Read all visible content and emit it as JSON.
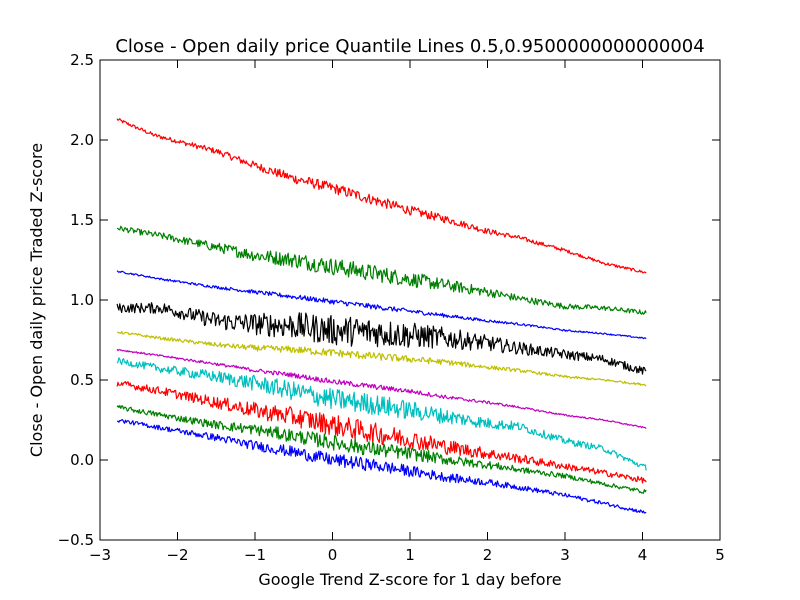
{
  "chart_data": {
    "type": "line",
    "title": "Close - Open daily price Quantile Lines 0.5,0.9500000000000004",
    "xlabel": "Google Trend Z-score for 1 day before",
    "ylabel": "Close - Open daily price Traded Z-score",
    "xlim": [
      -3,
      5
    ],
    "ylim": [
      -0.5,
      2.5
    ],
    "x_ticks": [
      -3,
      -2,
      -1,
      0,
      1,
      2,
      3,
      4,
      5
    ],
    "x_tick_labels": [
      "−3",
      "−2",
      "−1",
      "0",
      "1",
      "2",
      "3",
      "4",
      "5"
    ],
    "y_ticks": [
      -0.5,
      0.0,
      0.5,
      1.0,
      1.5,
      2.0,
      2.5
    ],
    "y_tick_labels": [
      "−0.5",
      "0.0",
      "0.5",
      "1.0",
      "1.5",
      "2.0",
      "2.5"
    ],
    "grid": false,
    "legend": "none",
    "series": [
      {
        "color": "#ff0000",
        "x": [
          -2.78,
          -2.3,
          -1.5,
          -1.0,
          -0.5,
          0.0,
          0.5,
          1.0,
          1.5,
          2.0,
          2.4,
          3.0,
          3.5,
          4.05
        ],
        "y": [
          2.13,
          2.03,
          1.93,
          1.84,
          1.76,
          1.7,
          1.63,
          1.56,
          1.5,
          1.43,
          1.39,
          1.31,
          1.23,
          1.17
        ],
        "noise": 0.025
      },
      {
        "color": "#008000",
        "x": [
          -2.78,
          -2.2,
          -1.5,
          -1.0,
          -0.5,
          0.0,
          0.5,
          1.0,
          1.5,
          2.0,
          2.4,
          3.0,
          3.5,
          4.05
        ],
        "y": [
          1.45,
          1.4,
          1.33,
          1.28,
          1.25,
          1.21,
          1.17,
          1.13,
          1.09,
          1.05,
          1.01,
          0.96,
          0.95,
          0.92
        ],
        "noise": 0.04
      },
      {
        "color": "#0000ff",
        "x": [
          -2.78,
          -2.2,
          -1.5,
          -1.0,
          -0.5,
          0.0,
          0.5,
          1.0,
          1.5,
          2.0,
          2.4,
          3.0,
          3.5,
          4.05
        ],
        "y": [
          1.18,
          1.13,
          1.08,
          1.05,
          1.02,
          0.99,
          0.96,
          0.93,
          0.9,
          0.87,
          0.85,
          0.81,
          0.79,
          0.76
        ],
        "noise": 0.012
      },
      {
        "color": "#000000",
        "x": [
          -2.78,
          -2.2,
          -1.5,
          -1.0,
          -0.5,
          0.0,
          0.5,
          1.0,
          1.5,
          2.0,
          2.4,
          3.0,
          3.5,
          4.05
        ],
        "y": [
          0.95,
          0.95,
          0.87,
          0.85,
          0.84,
          0.81,
          0.8,
          0.78,
          0.76,
          0.73,
          0.7,
          0.66,
          0.63,
          0.55
        ],
        "noise": 0.07
      },
      {
        "color": "#bfbf00",
        "x": [
          -2.78,
          -2.2,
          -1.5,
          -1.0,
          -0.5,
          0.0,
          0.5,
          1.0,
          1.5,
          2.0,
          2.4,
          3.0,
          3.5,
          4.05
        ],
        "y": [
          0.8,
          0.76,
          0.72,
          0.7,
          0.69,
          0.67,
          0.65,
          0.63,
          0.61,
          0.58,
          0.56,
          0.52,
          0.5,
          0.47
        ],
        "noise": 0.018
      },
      {
        "color": "#bf00bf",
        "x": [
          -2.78,
          -2.2,
          -1.5,
          -1.0,
          -0.5,
          0.0,
          0.5,
          1.0,
          1.5,
          2.0,
          2.4,
          3.0,
          3.5,
          4.05
        ],
        "y": [
          0.69,
          0.65,
          0.6,
          0.56,
          0.53,
          0.49,
          0.46,
          0.43,
          0.39,
          0.36,
          0.33,
          0.28,
          0.25,
          0.2
        ],
        "noise": 0.012
      },
      {
        "color": "#00bfbf",
        "x": [
          -2.78,
          -2.2,
          -1.5,
          -1.0,
          -0.5,
          0.0,
          0.5,
          1.0,
          1.5,
          2.0,
          2.4,
          3.0,
          3.5,
          4.05
        ],
        "y": [
          0.62,
          0.57,
          0.52,
          0.48,
          0.43,
          0.38,
          0.35,
          0.31,
          0.27,
          0.23,
          0.21,
          0.12,
          0.07,
          -0.05
        ],
        "noise": 0.05
      },
      {
        "color": "#ff0000",
        "x": [
          -2.78,
          -2.2,
          -1.5,
          -1.0,
          -0.5,
          0.0,
          0.5,
          1.0,
          1.5,
          2.0,
          2.4,
          3.0,
          3.5,
          4.05
        ],
        "y": [
          0.48,
          0.43,
          0.36,
          0.31,
          0.27,
          0.22,
          0.17,
          0.13,
          0.08,
          0.04,
          0.01,
          -0.04,
          -0.08,
          -0.13
        ],
        "noise": 0.05
      },
      {
        "color": "#008000",
        "x": [
          -2.78,
          -2.2,
          -1.5,
          -1.0,
          -0.5,
          0.0,
          0.5,
          1.0,
          1.5,
          2.0,
          2.4,
          3.0,
          3.5,
          4.05
        ],
        "y": [
          0.33,
          0.28,
          0.22,
          0.19,
          0.15,
          0.11,
          0.07,
          0.04,
          0.0,
          -0.03,
          -0.06,
          -0.1,
          -0.15,
          -0.2
        ],
        "noise": 0.035
      },
      {
        "color": "#0000ff",
        "x": [
          -2.78,
          -2.2,
          -1.5,
          -1.0,
          -0.5,
          0.0,
          0.5,
          1.0,
          1.5,
          2.0,
          2.4,
          3.0,
          3.5,
          4.05
        ],
        "y": [
          0.25,
          0.2,
          0.14,
          0.09,
          0.05,
          0.0,
          -0.03,
          -0.07,
          -0.11,
          -0.14,
          -0.17,
          -0.22,
          -0.27,
          -0.33
        ],
        "noise": 0.03
      }
    ]
  }
}
